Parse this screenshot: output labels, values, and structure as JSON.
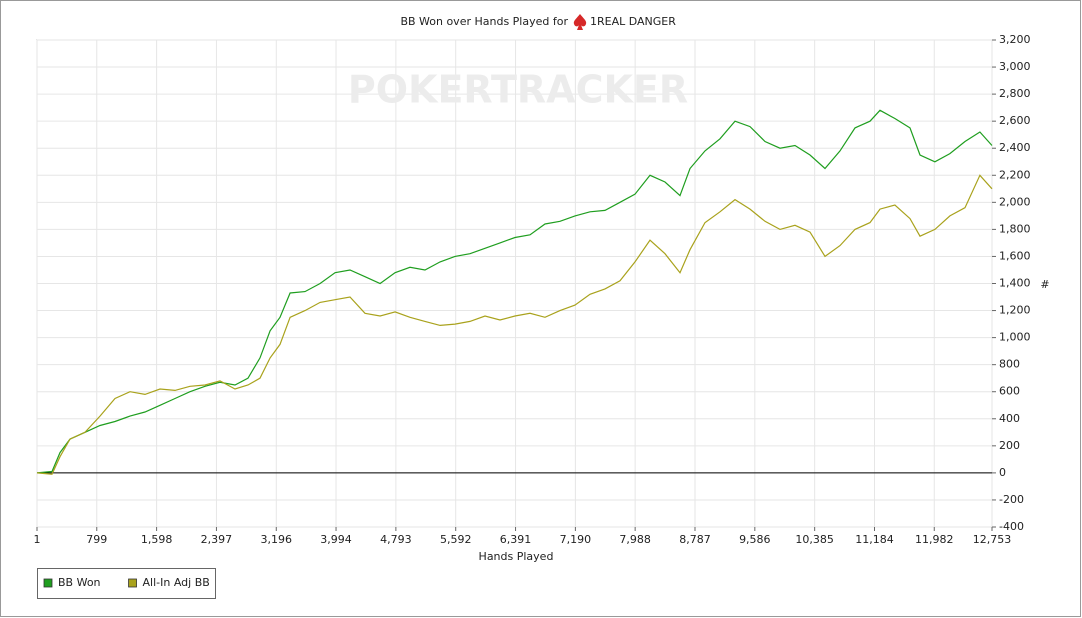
{
  "chart_data": {
    "type": "line",
    "title": "BB Won over Hands Played for",
    "player": "1REAL DANGER",
    "watermark": "POKERTRACKER",
    "xlabel": "Hands Played",
    "ylabel": "#",
    "xlim": [
      1,
      12753
    ],
    "ylim": [
      -400,
      3200
    ],
    "xticks": [
      1,
      799,
      {
        "value": 1598,
        "label": "1,598"
      },
      {
        "value": 2397,
        "label": "2,397"
      },
      {
        "value": 3196,
        "label": "3,196"
      },
      {
        "value": 3994,
        "label": "3,994"
      },
      {
        "value": 4793,
        "label": "4,793"
      },
      {
        "value": 5592,
        "label": "5,592"
      },
      {
        "value": 6391,
        "label": "6,391"
      },
      {
        "value": 7190,
        "label": "7,190"
      },
      {
        "value": 7988,
        "label": "7,988"
      },
      {
        "value": 8787,
        "label": "8,787"
      },
      {
        "value": 9586,
        "label": "9,586"
      },
      {
        "value": 10385,
        "label": "10,385"
      },
      {
        "value": 11184,
        "label": "11,184"
      },
      {
        "value": 11982,
        "label": "11,982"
      },
      {
        "value": 12753,
        "label": "12,753"
      }
    ],
    "yticks": [
      -400,
      -200,
      0,
      200,
      400,
      600,
      800,
      {
        "value": 1000,
        "label": "1,000"
      },
      {
        "value": 1200,
        "label": "1,200"
      },
      {
        "value": 1400,
        "label": "1,400"
      },
      {
        "value": 1600,
        "label": "1,600"
      },
      {
        "value": 1800,
        "label": "1,800"
      },
      {
        "value": 2000,
        "label": "2,000"
      },
      {
        "value": 2200,
        "label": "2,200"
      },
      {
        "value": 2400,
        "label": "2,400"
      },
      {
        "value": 2600,
        "label": "2,600"
      },
      {
        "value": 2800,
        "label": "2,800"
      },
      {
        "value": 3000,
        "label": "3,000"
      },
      {
        "value": 3200,
        "label": "3,200"
      }
    ],
    "grid": true,
    "y_axis_side": "right",
    "legend_position": "bottom-left",
    "x": [
      1,
      201,
      308,
      441,
      642,
      842,
      1042,
      1243,
      1443,
      1643,
      1844,
      2044,
      2244,
      2445,
      2645,
      2819,
      2979,
      3113,
      3246,
      3380,
      3580,
      3781,
      3981,
      4181,
      4381,
      4582,
      4782,
      4982,
      5182,
      5383,
      5583,
      5783,
      5983,
      6183,
      6384,
      6584,
      6784,
      6985,
      7185,
      7385,
      7585,
      7786,
      7986,
      8186,
      8386,
      8587,
      8720,
      8921,
      9121,
      9321,
      9521,
      9722,
      9922,
      10122,
      10323,
      10523,
      10723,
      10924,
      11124,
      11257,
      11457,
      11658,
      11791,
      11991,
      12191,
      12392,
      12592,
      12753
    ],
    "series": [
      {
        "name": "BB Won",
        "color": "#1f9e1f",
        "values": [
          0,
          10,
          150,
          250,
          300,
          350,
          380,
          420,
          450,
          500,
          550,
          600,
          640,
          670,
          650,
          700,
          850,
          1050,
          1150,
          1330,
          1340,
          1400,
          1480,
          1500,
          1450,
          1400,
          1480,
          1520,
          1500,
          1560,
          1600,
          1620,
          1660,
          1700,
          1740,
          1760,
          1840,
          1860,
          1900,
          1930,
          1940,
          2000,
          2060,
          2200,
          2150,
          2050,
          2250,
          2380,
          2470,
          2600,
          2560,
          2450,
          2400,
          2420,
          2350,
          2250,
          2380,
          2550,
          2600,
          2680,
          2620,
          2550,
          2350,
          2300,
          2360,
          2450,
          2520,
          2420
        ]
      },
      {
        "name": "All-In Adj BB",
        "color": "#a9a21c",
        "values": [
          0,
          -10,
          120,
          250,
          300,
          420,
          550,
          600,
          580,
          620,
          610,
          640,
          650,
          680,
          620,
          650,
          700,
          850,
          950,
          1150,
          1200,
          1260,
          1280,
          1300,
          1180,
          1160,
          1190,
          1150,
          1120,
          1090,
          1100,
          1120,
          1160,
          1130,
          1160,
          1180,
          1150,
          1200,
          1240,
          1320,
          1360,
          1420,
          1560,
          1720,
          1620,
          1480,
          1650,
          1850,
          1930,
          2020,
          1950,
          1860,
          1800,
          1830,
          1780,
          1600,
          1680,
          1800,
          1850,
          1950,
          1980,
          1880,
          1750,
          1800,
          1900,
          1960,
          2200,
          2100
        ]
      }
    ]
  }
}
